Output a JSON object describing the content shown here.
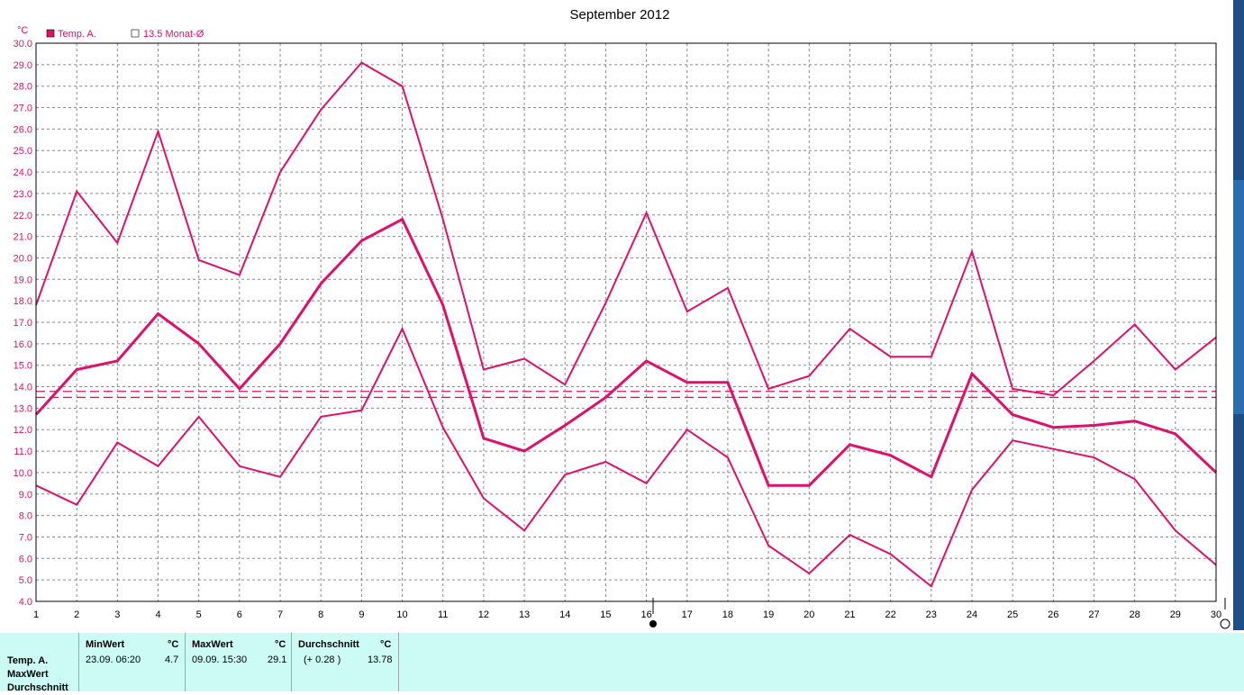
{
  "chart_data": {
    "type": "line",
    "title": "September 2012",
    "ylabel": "°C",
    "ylim": [
      4.0,
      30.0
    ],
    "y_ticks": [
      "4.0",
      "5.0",
      "6.0",
      "7.0",
      "8.0",
      "9.0",
      "10.0",
      "11.0",
      "12.0",
      "13.0",
      "14.0",
      "15.0",
      "16.0",
      "17.0",
      "18.0",
      "19.0",
      "20.0",
      "21.0",
      "22.0",
      "23.0",
      "24.0",
      "25.0",
      "26.0",
      "27.0",
      "28.0",
      "29.0",
      "30.0"
    ],
    "x": [
      1,
      2,
      3,
      4,
      5,
      6,
      7,
      8,
      9,
      10,
      11,
      12,
      13,
      14,
      15,
      16,
      17,
      18,
      19,
      20,
      21,
      22,
      23,
      24,
      25,
      26,
      27,
      28,
      29,
      30
    ],
    "legend": [
      {
        "label": "Temp. A.",
        "style": "filled"
      },
      {
        "label": "13.5 Monat-Ø",
        "style": "open"
      }
    ],
    "grid": true,
    "series": [
      {
        "name": "Temp. A.",
        "values": [
          12.7,
          14.8,
          15.2,
          17.4,
          16.0,
          13.9,
          16.0,
          18.8,
          20.8,
          21.8,
          17.8,
          11.6,
          11.0,
          12.2,
          13.5,
          15.2,
          14.2,
          14.2,
          9.4,
          9.4,
          11.3,
          10.8,
          9.8,
          14.6,
          12.7,
          12.1,
          12.2,
          12.4,
          11.8,
          10.0
        ],
        "width": 3
      },
      {
        "values": [
          17.8,
          23.1,
          20.7,
          25.9,
          19.9,
          19.2,
          24.0,
          26.9,
          29.1,
          28.0,
          21.8,
          14.8,
          15.3,
          14.1,
          17.9,
          22.1,
          17.5,
          18.6,
          13.9,
          14.5,
          16.7,
          15.4,
          15.4,
          20.3,
          13.9,
          13.6,
          15.2,
          16.9,
          14.8,
          16.3
        ],
        "width": 2
      },
      {
        "values": [
          9.4,
          8.5,
          11.4,
          10.3,
          12.6,
          10.3,
          9.8,
          12.6,
          12.9,
          16.7,
          12.1,
          8.8,
          7.3,
          9.9,
          10.5,
          9.5,
          12.0,
          10.7,
          6.6,
          5.3,
          7.1,
          6.2,
          4.7,
          9.2,
          11.5,
          11.1,
          10.7,
          9.7,
          7.3,
          5.7
        ],
        "width": 2
      }
    ],
    "reference_lines": [
      13.78,
      13.5
    ],
    "colors": {
      "line": "#e0106a",
      "grid": "#8a8a8a",
      "stats_bg": "#ccfbf6"
    }
  },
  "stats": {
    "row_labels": [
      "Temp. A.",
      "MaxWert",
      "Durchschnitt"
    ],
    "min": {
      "header": "MinWert",
      "unit": "°C",
      "date": "23.09.  06:20",
      "value": "4.7"
    },
    "max": {
      "header": "MaxWert",
      "unit": "°C",
      "date": "09.09.  15:30",
      "value": "29.1"
    },
    "avg": {
      "header": "Durchschnitt",
      "unit": "°C",
      "note": "(+ 0.28 )",
      "value": "13.78"
    }
  }
}
